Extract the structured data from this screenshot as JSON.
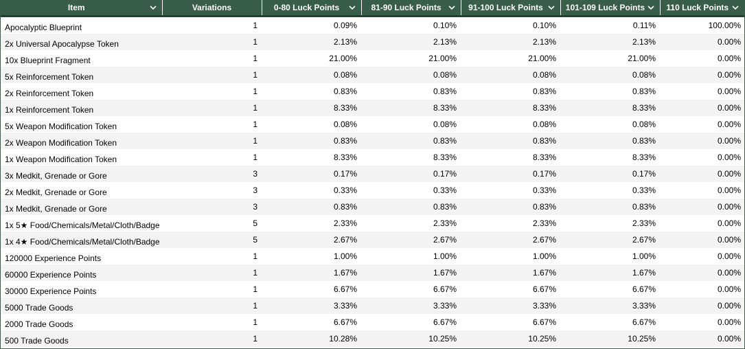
{
  "columns": [
    {
      "label": "Item",
      "icon": "chevron-down-icon"
    },
    {
      "label": "Variations",
      "icon": ""
    },
    {
      "label": "0-80 Luck Points",
      "icon": "chevron-down-icon"
    },
    {
      "label": "81-90 Luck Points",
      "icon": "chevron-down-icon"
    },
    {
      "label": "91-100 Luck Points",
      "icon": "chevron-down-icon"
    },
    {
      "label": "101-109 Luck Points",
      "icon": "chevron-down-icon"
    },
    {
      "label": "110 Luck Points",
      "icon": "chevron-down-icon"
    }
  ],
  "colors": {
    "header_bg": "#385d48",
    "header_text": "#ffffff",
    "row_alt": "#f3f3f3"
  },
  "rows": [
    [
      "Apocalyptic Blueprint",
      "1",
      "0.09%",
      "0.10%",
      "0.10%",
      "0.11%",
      "100.00%"
    ],
    [
      "2x Universal Apocalypse Token",
      "1",
      "2.13%",
      "2.13%",
      "2.13%",
      "2.13%",
      "0.00%"
    ],
    [
      "10x Blueprint Fragment",
      "1",
      "21.00%",
      "21.00%",
      "21.00%",
      "21.00%",
      "0.00%"
    ],
    [
      "5x Reinforcement Token",
      "1",
      "0.08%",
      "0.08%",
      "0.08%",
      "0.08%",
      "0.00%"
    ],
    [
      "2x Reinforcement Token",
      "1",
      "0.83%",
      "0.83%",
      "0.83%",
      "0.83%",
      "0.00%"
    ],
    [
      "1x Reinforcement Token",
      "1",
      "8.33%",
      "8.33%",
      "8.33%",
      "8.33%",
      "0.00%"
    ],
    [
      "5x Weapon Modification Token",
      "1",
      "0.08%",
      "0.08%",
      "0.08%",
      "0.08%",
      "0.00%"
    ],
    [
      "2x Weapon Modification Token",
      "1",
      "0.83%",
      "0.83%",
      "0.83%",
      "0.83%",
      "0.00%"
    ],
    [
      "1x Weapon Modification Token",
      "1",
      "8.33%",
      "8.33%",
      "8.33%",
      "8.33%",
      "0.00%"
    ],
    [
      "3x Medkit, Grenade or Gore",
      "3",
      "0.17%",
      "0.17%",
      "0.17%",
      "0.17%",
      "0.00%"
    ],
    [
      "2x Medkit, Grenade or Gore",
      "3",
      "0.33%",
      "0.33%",
      "0.33%",
      "0.33%",
      "0.00%"
    ],
    [
      "1x Medkit, Grenade or Gore",
      "3",
      "0.83%",
      "0.83%",
      "0.83%",
      "0.83%",
      "0.00%"
    ],
    [
      "1x 5★ Food/Chemicals/Metal/Cloth/Badge",
      "5",
      "2.33%",
      "2.33%",
      "2.33%",
      "2.33%",
      "0.00%"
    ],
    [
      "1x 4★ Food/Chemicals/Metal/Cloth/Badge",
      "5",
      "2.67%",
      "2.67%",
      "2.67%",
      "2.67%",
      "0.00%"
    ],
    [
      "120000 Experience Points",
      "1",
      "1.00%",
      "1.00%",
      "1.00%",
      "1.00%",
      "0.00%"
    ],
    [
      "60000 Experience Points",
      "1",
      "1.67%",
      "1.67%",
      "1.67%",
      "1.67%",
      "0.00%"
    ],
    [
      "30000 Experience Points",
      "1",
      "6.67%",
      "6.67%",
      "6.67%",
      "6.67%",
      "0.00%"
    ],
    [
      "5000 Trade Goods",
      "1",
      "3.33%",
      "3.33%",
      "3.33%",
      "3.33%",
      "0.00%"
    ],
    [
      "2000 Trade Goods",
      "1",
      "6.67%",
      "6.67%",
      "6.67%",
      "6.67%",
      "0.00%"
    ],
    [
      "500 Trade Goods",
      "1",
      "10.28%",
      "10.25%",
      "10.25%",
      "10.25%",
      "0.00%"
    ]
  ]
}
